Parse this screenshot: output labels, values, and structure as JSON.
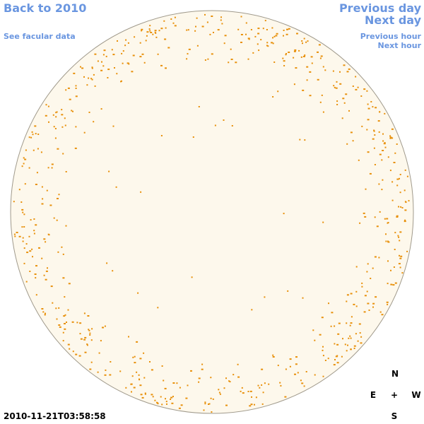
{
  "nav": {
    "back": "Back to 2010",
    "facular": "See facular data",
    "previous_day": "Previous day",
    "next_day": "Next day",
    "previous_hour": "Previous hour",
    "next_hour": "Next hour"
  },
  "timestamp": "2010-11-21T03:58:58",
  "compass": {
    "north": "N",
    "east": "E",
    "center": "+",
    "west": "W",
    "south": "S"
  }
}
